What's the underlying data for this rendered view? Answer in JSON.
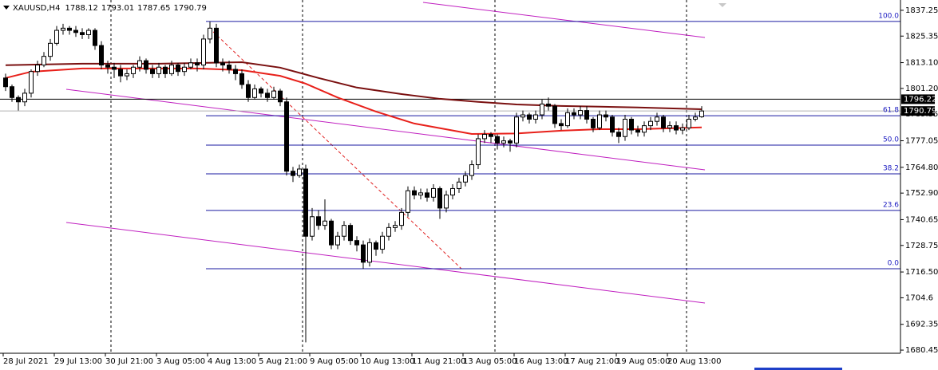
{
  "chart_data": {
    "type": "candlestick",
    "symbol": "XAUUSD,H4",
    "up_color": "#ffffff",
    "down_color": "#000000",
    "ylim": [
      1679,
      1842
    ],
    "yticks": [
      1837.25,
      1825.35,
      {
        "value": 1813.1,
        "label": "1813.10"
      },
      {
        "value": 1801.2,
        "label": "1801.20"
      },
      1789.35,
      1777.05,
      {
        "value": 1764.8,
        "label": "1764.80"
      },
      {
        "value": 1752.9,
        "label": "1752.90"
      },
      1740.65,
      1728.75,
      {
        "value": 1716.5,
        "label": "1716.50"
      },
      1704.6,
      1692.35,
      1680.45
    ],
    "xticks": [
      {
        "value": 0,
        "label": "28 Jul 2021"
      },
      {
        "value": 8,
        "label": "29 Jul 13:00"
      },
      {
        "value": 16,
        "label": "30 Jul 21:00"
      },
      {
        "value": 24,
        "label": "3 Aug 05:00"
      },
      {
        "value": 32,
        "label": "4 Aug 13:00"
      },
      {
        "value": 40,
        "label": "5 Aug 21:00"
      },
      {
        "value": 48,
        "label": "9 Aug 05:00"
      },
      {
        "value": 56,
        "label": "10 Aug 13:00"
      },
      {
        "value": 64,
        "label": "11 Aug 21:00"
      },
      {
        "value": 72,
        "label": "13 Aug 05:00"
      },
      {
        "value": 80,
        "label": "16 Aug 13:00"
      },
      {
        "value": 88,
        "label": "17 Aug 21:00"
      },
      {
        "value": 96,
        "label": "19 Aug 05:00"
      },
      {
        "value": 104,
        "label": "20 Aug 13:00"
      }
    ],
    "ohlc": [
      [
        1806,
        1808,
        1800,
        1802
      ],
      [
        1802,
        1803,
        1795,
        1797
      ],
      [
        1797,
        1798,
        1791,
        1795
      ],
      [
        1795,
        1801,
        1793,
        1799
      ],
      [
        1799,
        1810,
        1797,
        1809
      ],
      [
        1809,
        1814,
        1807,
        1812
      ],
      [
        1812,
        1818,
        1811,
        1816
      ],
      [
        1816,
        1824,
        1814,
        1822
      ],
      [
        1822,
        1830,
        1821,
        1828
      ],
      [
        1828,
        1831,
        1826,
        1829
      ],
      [
        1829,
        1830,
        1826,
        1828
      ],
      [
        1828,
        1830,
        1825,
        1827
      ],
      [
        1827,
        1829,
        1824,
        1826
      ],
      [
        1826,
        1829,
        1824,
        1828
      ],
      [
        1828,
        1829,
        1819,
        1821
      ],
      [
        1821,
        1823,
        1810,
        1812
      ],
      [
        1812,
        1814,
        1808,
        1811
      ],
      [
        1811,
        1813,
        1806,
        1810
      ],
      [
        1810,
        1812,
        1804,
        1807
      ],
      [
        1807,
        1810,
        1805,
        1808
      ],
      [
        1808,
        1812,
        1806,
        1811
      ],
      [
        1811,
        1816,
        1809,
        1814
      ],
      [
        1814,
        1815,
        1808,
        1810
      ],
      [
        1810,
        1812,
        1806,
        1808
      ],
      [
        1808,
        1813,
        1806,
        1811
      ],
      [
        1811,
        1812,
        1806,
        1808
      ],
      [
        1808,
        1814,
        1807,
        1812
      ],
      [
        1812,
        1813,
        1807,
        1809
      ],
      [
        1809,
        1813,
        1807,
        1811
      ],
      [
        1811,
        1815,
        1810,
        1813
      ],
      [
        1813,
        1815,
        1809,
        1812
      ],
      [
        1812,
        1826,
        1810,
        1824
      ],
      [
        1824,
        1832,
        1822,
        1829
      ],
      [
        1829,
        1831,
        1811,
        1813
      ],
      [
        1813,
        1815,
        1809,
        1812
      ],
      [
        1812,
        1814,
        1808,
        1810
      ],
      [
        1810,
        1812,
        1805,
        1808
      ],
      [
        1808,
        1810,
        1801,
        1803
      ],
      [
        1803,
        1805,
        1795,
        1797
      ],
      [
        1797,
        1803,
        1796,
        1801
      ],
      [
        1801,
        1802,
        1797,
        1799
      ],
      [
        1799,
        1801,
        1795,
        1797
      ],
      [
        1797,
        1802,
        1796,
        1800
      ],
      [
        1800,
        1801,
        1793,
        1795
      ],
      [
        1795,
        1797,
        1761,
        1763
      ],
      [
        1763,
        1765,
        1758,
        1761
      ],
      [
        1761,
        1766,
        1760,
        1764
      ],
      [
        1764,
        1766,
        1684,
        1733
      ],
      [
        1733,
        1746,
        1731,
        1742
      ],
      [
        1742,
        1745,
        1736,
        1738
      ],
      [
        1738,
        1750,
        1736,
        1740
      ],
      [
        1740,
        1741,
        1727,
        1729
      ],
      [
        1729,
        1735,
        1727,
        1733
      ],
      [
        1733,
        1740,
        1731,
        1738
      ],
      [
        1738,
        1739,
        1729,
        1731
      ],
      [
        1731,
        1733,
        1726,
        1729
      ],
      [
        1729,
        1731,
        1718,
        1721
      ],
      [
        1721,
        1732,
        1719,
        1730
      ],
      [
        1730,
        1731,
        1724,
        1727
      ],
      [
        1727,
        1735,
        1725,
        1733
      ],
      [
        1733,
        1739,
        1731,
        1737
      ],
      [
        1737,
        1740,
        1735,
        1738
      ],
      [
        1738,
        1746,
        1736,
        1744
      ],
      [
        1744,
        1756,
        1742,
        1754
      ],
      [
        1754,
        1756,
        1750,
        1752
      ],
      [
        1752,
        1755,
        1750,
        1753
      ],
      [
        1753,
        1755,
        1749,
        1751
      ],
      [
        1751,
        1757,
        1749,
        1755
      ],
      [
        1755,
        1756,
        1741,
        1746
      ],
      [
        1746,
        1754,
        1744,
        1752
      ],
      [
        1752,
        1757,
        1750,
        1755
      ],
      [
        1755,
        1760,
        1753,
        1758
      ],
      [
        1758,
        1763,
        1756,
        1761
      ],
      [
        1761,
        1768,
        1759,
        1766
      ],
      [
        1766,
        1780,
        1764,
        1778
      ],
      [
        1778,
        1782,
        1776,
        1780
      ],
      [
        1780,
        1781,
        1776,
        1779
      ],
      [
        1779,
        1780,
        1773,
        1776
      ],
      [
        1776,
        1779,
        1774,
        1777
      ],
      [
        1777,
        1778,
        1772,
        1776
      ],
      [
        1776,
        1790,
        1774,
        1788
      ],
      [
        1788,
        1791,
        1786,
        1789
      ],
      [
        1789,
        1790,
        1785,
        1787
      ],
      [
        1787,
        1791,
        1785,
        1789
      ],
      [
        1789,
        1796,
        1787,
        1794
      ],
      [
        1794,
        1797,
        1791,
        1793
      ],
      [
        1793,
        1794,
        1783,
        1785
      ],
      [
        1785,
        1787,
        1782,
        1784
      ],
      [
        1784,
        1792,
        1783,
        1790
      ],
      [
        1790,
        1792,
        1787,
        1789
      ],
      [
        1789,
        1793,
        1787,
        1791
      ],
      [
        1791,
        1793,
        1785,
        1787
      ],
      [
        1787,
        1788,
        1781,
        1783
      ],
      [
        1783,
        1791,
        1782,
        1789
      ],
      [
        1789,
        1791,
        1786,
        1788
      ],
      [
        1788,
        1789,
        1779,
        1781
      ],
      [
        1781,
        1783,
        1776,
        1779
      ],
      [
        1779,
        1789,
        1777,
        1787
      ],
      [
        1787,
        1788,
        1780,
        1782
      ],
      [
        1782,
        1784,
        1779,
        1781
      ],
      [
        1781,
        1786,
        1779,
        1784
      ],
      [
        1784,
        1788,
        1782,
        1786
      ],
      [
        1786,
        1790,
        1784,
        1788
      ],
      [
        1788,
        1789,
        1781,
        1783
      ],
      [
        1783,
        1786,
        1781,
        1784
      ],
      [
        1784,
        1786,
        1780,
        1782
      ],
      [
        1782,
        1785,
        1780,
        1783
      ],
      [
        1783,
        1789,
        1782,
        1787
      ],
      [
        1787,
        1790,
        1786,
        1788
      ],
      [
        1788.12,
        1793.01,
        1787.65,
        1790.79
      ]
    ],
    "series": [
      {
        "color": "#e8201a",
        "x": [
          0,
          4,
          12,
          30,
          37,
          43,
          47,
          52,
          58,
          64,
          73,
          80,
          87,
          93,
          99,
          109
        ],
        "values": [
          1806,
          1808.9,
          1810.4,
          1810.4,
          1809.6,
          1807,
          1803.4,
          1797,
          1790.5,
          1785,
          1780.2,
          1780.4,
          1781.7,
          1782.4,
          1782.4,
          1783.2
        ]
      },
      {
        "color": "#7a1010",
        "x": [
          0,
          12,
          24,
          37,
          43,
          49,
          55,
          62,
          68,
          74,
          80,
          87,
          93,
          99,
          109
        ],
        "values": [
          1811.9,
          1812.6,
          1812.6,
          1813.3,
          1810.8,
          1806,
          1801.6,
          1798.6,
          1796.4,
          1795,
          1793.8,
          1793.1,
          1792.8,
          1792.4,
          1791.6
        ]
      }
    ],
    "fibo": [
      {
        "label": "100.0",
        "value": 1832.1
      },
      {
        "label": "61.8",
        "value": 1788.6
      },
      {
        "label": "50.0",
        "value": 1775.05
      },
      {
        "label": "38.2",
        "value": 1761.8
      },
      {
        "label": "23.6",
        "value": 1744.9
      },
      {
        "label": "0.0",
        "value": 1718
      }
    ],
    "price_lines": [
      1796.22,
      1790.79
    ]
  }
}
